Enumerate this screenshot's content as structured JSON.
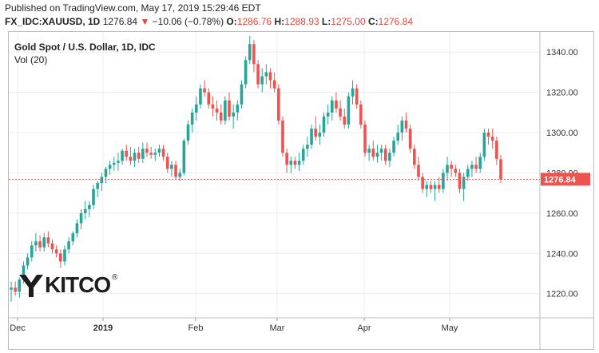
{
  "header": {
    "published": "Published on TradingView.com, May 17, 2019 15:29:46 EDT",
    "symbol": "FX_IDC:XAUUSD, 1D",
    "last": "1276.84",
    "change": "−10.06 (−0.78%)",
    "o_label": "O:",
    "o_value": "1286.76",
    "h_label": "H:",
    "h_value": "1288.93",
    "l_label": "L:",
    "l_value": "1275.00",
    "c_label": "C:",
    "c_value": "1276.84"
  },
  "chart": {
    "title": "Gold Spot / U.S. Dollar, 1D, IDC",
    "volume_label": "Vol (20)",
    "price_tag": "1276.84",
    "logo_text": "KITCO",
    "logo_reg": "®"
  },
  "colors": {
    "up": "#26a69a",
    "down": "#ef5350",
    "grid": "#ececec",
    "tag": "#ef5350"
  },
  "chart_data": {
    "type": "candlestick",
    "title": "Gold Spot / U.S. Dollar, 1D, IDC",
    "y_ticks": [
      1220,
      1240,
      1260,
      1280,
      1300,
      1320,
      1340
    ],
    "y_tick_labels": [
      "1220.00",
      "1240.00",
      "1260.00",
      "1280.00",
      "1300.00",
      "1320.00",
      "1340.00"
    ],
    "ylim": [
      1208,
      1350
    ],
    "x_labels": [
      "Dec",
      "2019",
      "Feb",
      "Mar",
      "Apr",
      "May"
    ],
    "last_price": 1276.84,
    "grid": true,
    "candles": [
      [
        1222,
        1226,
        1216,
        1223
      ],
      [
        1223,
        1226,
        1219,
        1221
      ],
      [
        1221,
        1228,
        1218,
        1227
      ],
      [
        1227,
        1236,
        1225,
        1234
      ],
      [
        1234,
        1240,
        1232,
        1238
      ],
      [
        1238,
        1246,
        1236,
        1244
      ],
      [
        1244,
        1250,
        1241,
        1246
      ],
      [
        1246,
        1249,
        1241,
        1243
      ],
      [
        1243,
        1250,
        1241,
        1248
      ],
      [
        1248,
        1251,
        1243,
        1245
      ],
      [
        1245,
        1247,
        1240,
        1242
      ],
      [
        1242,
        1244,
        1238,
        1240
      ],
      [
        1240,
        1242,
        1233,
        1236
      ],
      [
        1236,
        1244,
        1234,
        1242
      ],
      [
        1242,
        1248,
        1240,
        1246
      ],
      [
        1246,
        1251,
        1244,
        1250
      ],
      [
        1250,
        1257,
        1248,
        1255
      ],
      [
        1255,
        1262,
        1252,
        1260
      ],
      [
        1260,
        1266,
        1257,
        1262
      ],
      [
        1262,
        1266,
        1258,
        1264
      ],
      [
        1264,
        1274,
        1262,
        1272
      ],
      [
        1272,
        1276,
        1268,
        1275
      ],
      [
        1275,
        1280,
        1271,
        1278
      ],
      [
        1278,
        1283,
        1275,
        1282
      ],
      [
        1282,
        1286,
        1279,
        1284
      ],
      [
        1284,
        1288,
        1281,
        1285
      ],
      [
        1285,
        1290,
        1281,
        1286
      ],
      [
        1286,
        1292,
        1284,
        1291
      ],
      [
        1291,
        1294,
        1286,
        1288
      ],
      [
        1288,
        1293,
        1284,
        1286
      ],
      [
        1286,
        1292,
        1283,
        1290
      ],
      [
        1290,
        1293,
        1285,
        1287
      ],
      [
        1287,
        1295,
        1285,
        1292
      ],
      [
        1292,
        1295,
        1288,
        1290
      ],
      [
        1290,
        1293,
        1287,
        1289
      ],
      [
        1289,
        1292,
        1286,
        1290
      ],
      [
        1290,
        1294,
        1288,
        1292
      ],
      [
        1292,
        1294,
        1286,
        1288
      ],
      [
        1288,
        1290,
        1280,
        1282
      ],
      [
        1282,
        1286,
        1278,
        1284
      ],
      [
        1284,
        1286,
        1277,
        1278
      ],
      [
        1278,
        1282,
        1276,
        1280
      ],
      [
        1280,
        1297,
        1279,
        1296
      ],
      [
        1296,
        1306,
        1294,
        1304
      ],
      [
        1304,
        1312,
        1300,
        1310
      ],
      [
        1310,
        1318,
        1306,
        1314
      ],
      [
        1314,
        1324,
        1312,
        1322
      ],
      [
        1322,
        1326,
        1318,
        1320
      ],
      [
        1320,
        1322,
        1312,
        1314
      ],
      [
        1314,
        1318,
        1308,
        1312
      ],
      [
        1312,
        1316,
        1306,
        1310
      ],
      [
        1310,
        1314,
        1304,
        1306
      ],
      [
        1306,
        1318,
        1304,
        1316
      ],
      [
        1316,
        1320,
        1306,
        1308
      ],
      [
        1308,
        1314,
        1302,
        1310
      ],
      [
        1310,
        1316,
        1306,
        1314
      ],
      [
        1314,
        1326,
        1312,
        1324
      ],
      [
        1324,
        1338,
        1322,
        1336
      ],
      [
        1336,
        1348,
        1334,
        1344
      ],
      [
        1344,
        1346,
        1330,
        1334
      ],
      [
        1334,
        1336,
        1322,
        1324
      ],
      [
        1324,
        1332,
        1320,
        1328
      ],
      [
        1328,
        1334,
        1324,
        1330
      ],
      [
        1330,
        1332,
        1322,
        1326
      ],
      [
        1326,
        1330,
        1320,
        1322
      ],
      [
        1322,
        1324,
        1304,
        1306
      ],
      [
        1306,
        1308,
        1288,
        1290
      ],
      [
        1290,
        1292,
        1280,
        1284
      ],
      [
        1284,
        1288,
        1280,
        1286
      ],
      [
        1286,
        1288,
        1282,
        1284
      ],
      [
        1284,
        1290,
        1281,
        1286
      ],
      [
        1286,
        1294,
        1284,
        1292
      ],
      [
        1292,
        1298,
        1288,
        1294
      ],
      [
        1294,
        1304,
        1292,
        1302
      ],
      [
        1302,
        1308,
        1296,
        1298
      ],
      [
        1298,
        1304,
        1294,
        1300
      ],
      [
        1300,
        1310,
        1298,
        1308
      ],
      [
        1308,
        1314,
        1304,
        1310
      ],
      [
        1310,
        1318,
        1306,
        1316
      ],
      [
        1316,
        1320,
        1310,
        1312
      ],
      [
        1312,
        1316,
        1306,
        1308
      ],
      [
        1308,
        1312,
        1302,
        1304
      ],
      [
        1304,
        1320,
        1302,
        1318
      ],
      [
        1318,
        1326,
        1314,
        1322
      ],
      [
        1322,
        1324,
        1312,
        1314
      ],
      [
        1314,
        1316,
        1302,
        1304
      ],
      [
        1304,
        1306,
        1288,
        1290
      ],
      [
        1290,
        1294,
        1286,
        1292
      ],
      [
        1292,
        1296,
        1286,
        1288
      ],
      [
        1288,
        1294,
        1285,
        1290
      ],
      [
        1290,
        1294,
        1286,
        1292
      ],
      [
        1292,
        1294,
        1284,
        1286
      ],
      [
        1286,
        1292,
        1283,
        1290
      ],
      [
        1290,
        1298,
        1288,
        1296
      ],
      [
        1296,
        1304,
        1294,
        1300
      ],
      [
        1300,
        1308,
        1296,
        1306
      ],
      [
        1306,
        1310,
        1300,
        1302
      ],
      [
        1302,
        1304,
        1290,
        1292
      ],
      [
        1292,
        1294,
        1282,
        1284
      ],
      [
        1284,
        1288,
        1276,
        1278
      ],
      [
        1278,
        1280,
        1270,
        1272
      ],
      [
        1272,
        1276,
        1268,
        1274
      ],
      [
        1274,
        1276,
        1270,
        1272
      ],
      [
        1272,
        1276,
        1266,
        1274
      ],
      [
        1274,
        1278,
        1270,
        1272
      ],
      [
        1272,
        1282,
        1270,
        1280
      ],
      [
        1280,
        1288,
        1276,
        1284
      ],
      [
        1284,
        1286,
        1278,
        1282
      ],
      [
        1282,
        1284,
        1278,
        1280
      ],
      [
        1280,
        1282,
        1270,
        1272
      ],
      [
        1272,
        1280,
        1266,
        1278
      ],
      [
        1278,
        1284,
        1276,
        1282
      ],
      [
        1282,
        1286,
        1278,
        1284
      ],
      [
        1284,
        1288,
        1280,
        1282
      ],
      [
        1282,
        1290,
        1280,
        1288
      ],
      [
        1288,
        1302,
        1286,
        1300
      ],
      [
        1300,
        1302,
        1294,
        1298
      ],
      [
        1298,
        1302,
        1292,
        1296
      ],
      [
        1296,
        1298,
        1284,
        1287
      ],
      [
        1286.76,
        1288.93,
        1275,
        1276.84
      ]
    ]
  }
}
